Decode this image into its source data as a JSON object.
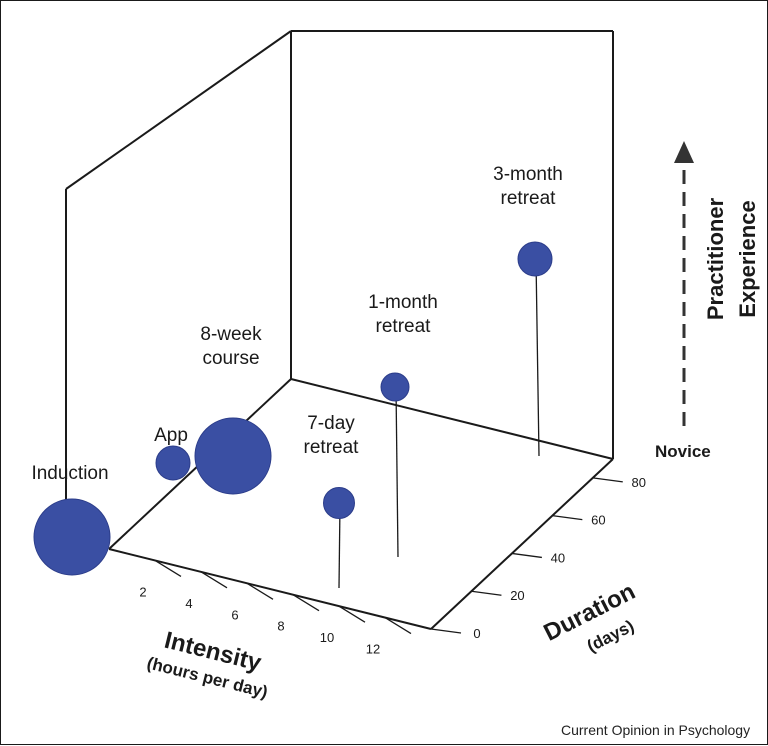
{
  "chart_data": {
    "type": "scatter",
    "title": "",
    "x_axis": {
      "label": "Intensity",
      "sublabel": "(hours per day)",
      "ticks": [
        2,
        4,
        6,
        8,
        10,
        12
      ],
      "range": [
        0,
        14
      ]
    },
    "y_axis": {
      "label": "Duration",
      "sublabel": "(days)",
      "ticks": [
        0,
        20,
        40,
        60,
        80
      ],
      "range": [
        0,
        90
      ]
    },
    "z_axis": {
      "label": "Practitioner\nExperience",
      "label_lines": [
        "Practitioner",
        "Experience"
      ],
      "bottom_label": "Novice",
      "range": [
        0,
        1
      ]
    },
    "points": [
      {
        "label": "Induction",
        "label_lines": [
          "Induction"
        ],
        "intensity": 0.1,
        "duration": 0,
        "experience": 0.0,
        "size": 1.0
      },
      {
        "label": "App",
        "label_lines": [
          "App"
        ],
        "intensity": 2.2,
        "duration": 0,
        "experience": 0.12,
        "size": 0.3
      },
      {
        "label": "8-week course",
        "label_lines": [
          "8-week",
          "course"
        ],
        "intensity": 2.2,
        "duration": 0,
        "experience": 0.12,
        "size": 1.0
      },
      {
        "label": "7-day retreat",
        "label_lines": [
          "7-day",
          "retreat"
        ],
        "intensity": 9.0,
        "duration": 7,
        "experience": 0.35,
        "size": 0.25
      },
      {
        "label": "1-month retreat",
        "label_lines": [
          "1-month",
          "retreat"
        ],
        "intensity": 11.0,
        "duration": 30,
        "experience": 0.65,
        "size": 0.2
      },
      {
        "label": "3-month retreat",
        "label_lines": [
          "3-month",
          "retreat"
        ],
        "intensity": 12.0,
        "duration": 90,
        "experience": 0.82,
        "size": 0.3
      }
    ],
    "marker_color": "#3a4fa3",
    "grid": false
  },
  "footer": {
    "source": "Current Opinion in Psychology"
  }
}
